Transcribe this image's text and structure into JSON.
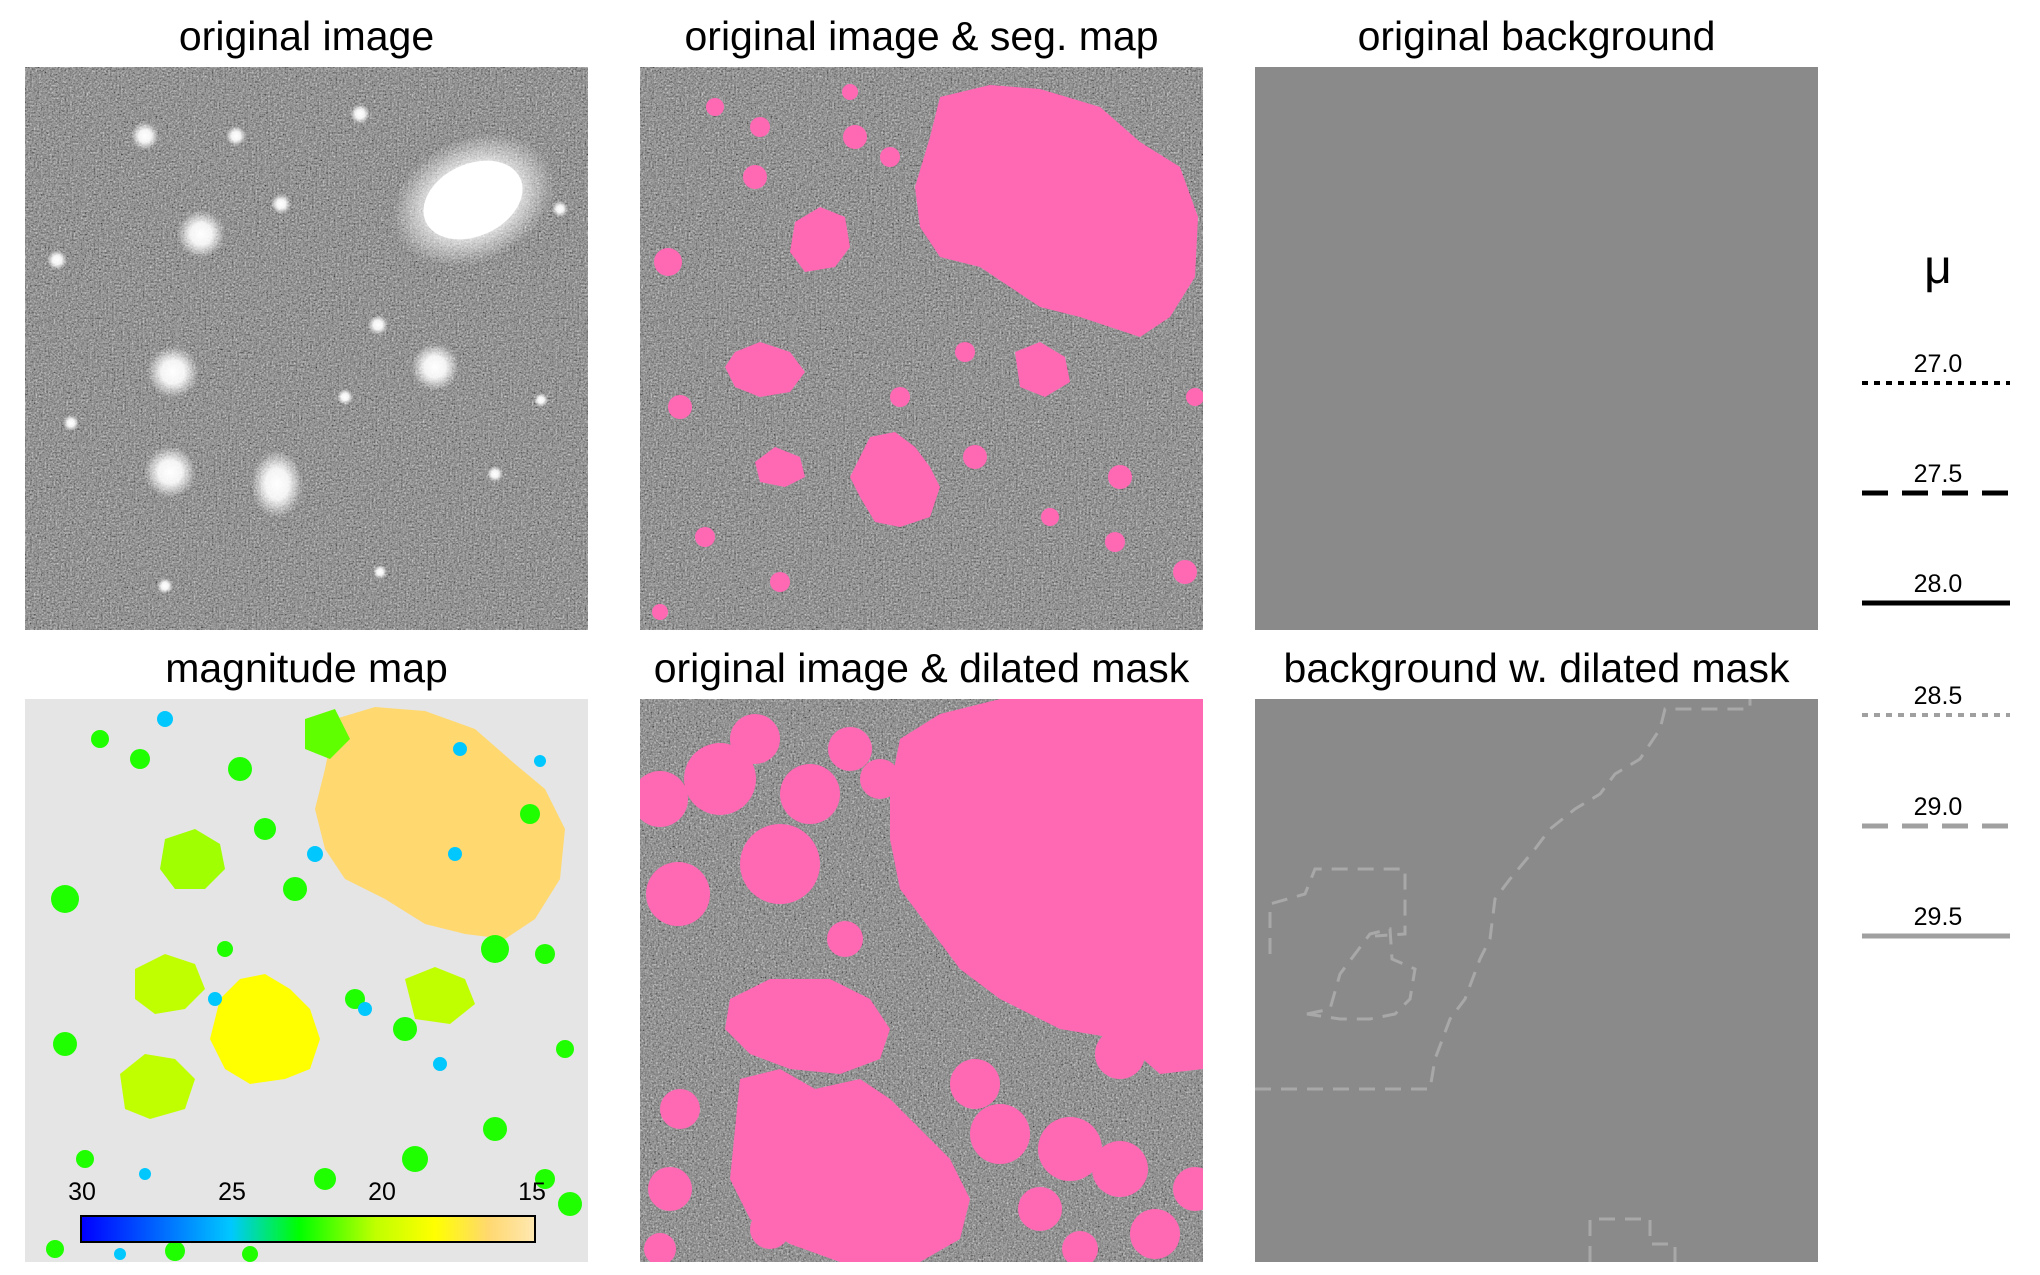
{
  "panels": {
    "original_image": {
      "title": "original image"
    },
    "seg_map": {
      "title": "original image & seg. map"
    },
    "original_background": {
      "title": "original background"
    },
    "magnitude_map": {
      "title": "magnitude map"
    },
    "dilated_mask": {
      "title": "original image & dilated mask"
    },
    "background_dilated": {
      "title": "background w. dilated mask"
    }
  },
  "colors": {
    "mask_pink": "#ff69b4",
    "background_grey": "#8a8a8a",
    "magnitude_bg": "#e5e5e5",
    "contour_dark": "#000000",
    "contour_light": "#a8a8a8"
  },
  "colorbar": {
    "ticks": [
      "30",
      "25",
      "20",
      "15"
    ],
    "range": [
      30,
      15
    ]
  },
  "legend": {
    "title": "μ",
    "entries": [
      {
        "label": "27.0",
        "style": "dotted",
        "color": "#000000"
      },
      {
        "label": "27.5",
        "style": "dashed",
        "color": "#000000"
      },
      {
        "label": "28.0",
        "style": "solid",
        "color": "#000000"
      },
      {
        "label": "28.5",
        "style": "dotted",
        "color": "#a0a0a0"
      },
      {
        "label": "29.0",
        "style": "dashed",
        "color": "#a0a0a0"
      },
      {
        "label": "29.5",
        "style": "solid",
        "color": "#a0a0a0"
      }
    ]
  }
}
